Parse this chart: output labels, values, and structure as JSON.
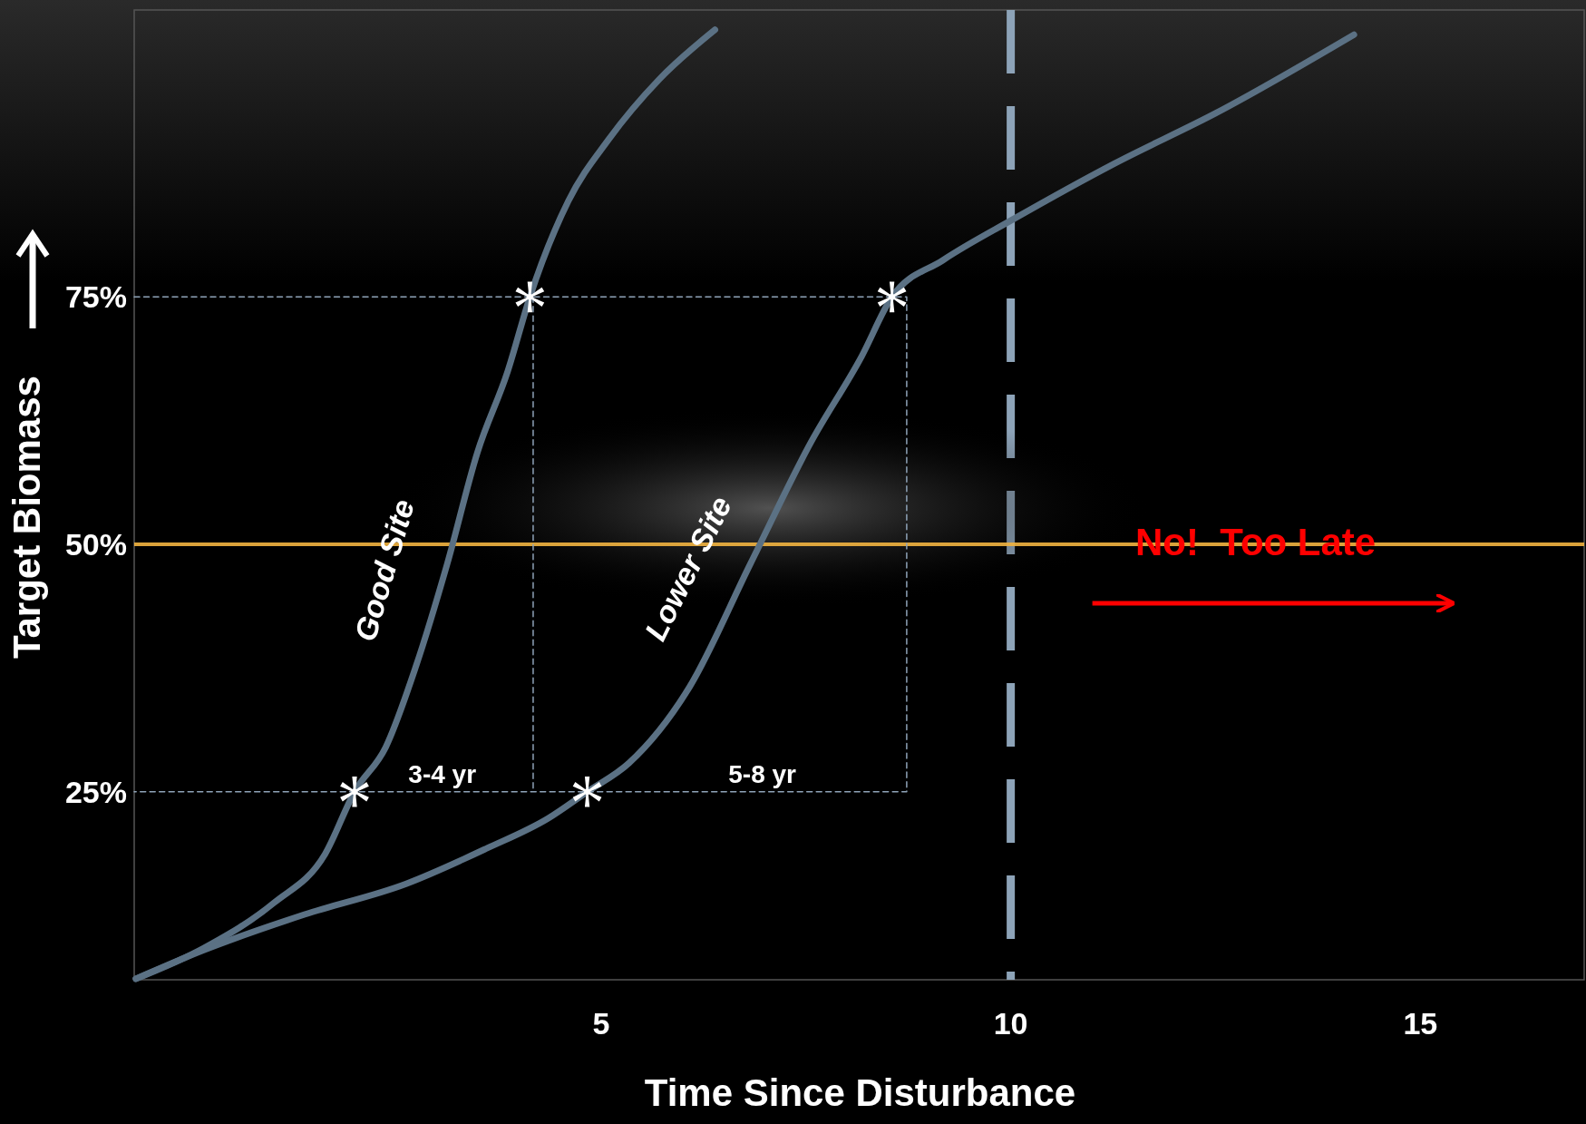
{
  "chart_data": {
    "type": "line",
    "xlabel": "Time Since Disturbance",
    "ylabel": "Target Biomass",
    "xlim": [
      -0.7,
      17
    ],
    "ylim": [
      6,
      104
    ],
    "xticks": [
      5,
      10,
      15
    ],
    "yticks": [
      {
        "value": 25,
        "label": "25%"
      },
      {
        "value": 50,
        "label": "50%"
      },
      {
        "value": 75,
        "label": "75%"
      }
    ],
    "grid": false,
    "line_style": "solid",
    "series": [
      {
        "name": "Good Site",
        "color": "#5b7184",
        "x": [
          -0.68,
          0.15,
          1.01,
          1.63,
          1.99,
          2.37,
          2.74,
          3.12,
          3.49,
          3.86,
          4.13,
          4.6,
          5.09,
          5.71,
          6.39
        ],
        "values": [
          6.1,
          9.2,
          13.8,
          18.7,
          25,
          29.5,
          37.7,
          48,
          59.3,
          67.5,
          75,
          84.7,
          90.9,
          97,
          102
        ]
      },
      {
        "name": "Lower Site",
        "color": "#5b7184",
        "x": [
          -0.68,
          0.15,
          1.38,
          2.62,
          3.61,
          4.35,
          4.83,
          5.34,
          6.08,
          6.82,
          7.56,
          8.18,
          8.55,
          9.17,
          10.04,
          11.27,
          12.51,
          14.19
        ],
        "values": [
          6.1,
          9,
          12.6,
          15.7,
          19.3,
          22.3,
          25,
          27.9,
          35.6,
          48,
          60.3,
          69,
          75,
          78.7,
          82.9,
          88.5,
          93.6,
          101.5
        ]
      },
      {
        "type": "line",
        "line_style": "dashed",
        "color": "#8fa3b8",
        "x": [
          -0.7,
          8.73,
          8.73,
          -0.7
        ],
        "values": [
          75,
          75,
          25,
          25
        ]
      },
      {
        "type": "line",
        "line_style": "dashed",
        "color": "#8fa3b8",
        "x": [
          4.17,
          4.17
        ],
        "values": [
          75,
          25
        ]
      },
      {
        "type": "scatter",
        "marker": "cross",
        "color": "#ffffff",
        "x": [
          1.99,
          4.13,
          4.83,
          8.55
        ],
        "values": [
          25,
          75,
          25,
          75
        ]
      }
    ],
    "ref_lines": [
      {
        "axis": "x",
        "value": 10,
        "color": "#8da3b8",
        "line_style": "dashed"
      },
      {
        "axis": "y",
        "value": 50,
        "color": "#f2b441",
        "line_style": "solid"
      }
    ],
    "annotations": [
      "3-4 yr",
      "5-8 yr",
      "No!  Too Late"
    ]
  }
}
